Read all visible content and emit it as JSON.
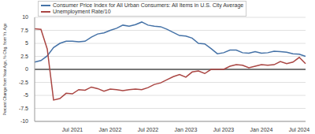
{
  "chart_data": {
    "type": "line",
    "y_label": "Percent Change from Year Ago, % Chg. from Yr. Ago",
    "categories": [
      null,
      null,
      null,
      null,
      null,
      null,
      "Jul 2021",
      null,
      null,
      null,
      null,
      null,
      "Jan 2022",
      null,
      null,
      null,
      null,
      null,
      "Jul 2022",
      null,
      null,
      null,
      null,
      null,
      "Jan 2023",
      null,
      null,
      null,
      null,
      null,
      "Jul 2023",
      null,
      null,
      null,
      null,
      null,
      "Jan 2024",
      null,
      null,
      null,
      null,
      null,
      "Jul 2024",
      null
    ],
    "series": [
      {
        "name": "Consumer Price Index for All Urban Consumers: All Items in U.S. City Average",
        "color": "#4572a7",
        "values": [
          1.4,
          1.7,
          2.6,
          4.2,
          5.0,
          5.4,
          5.4,
          5.3,
          5.4,
          6.2,
          6.8,
          7.0,
          7.5,
          7.9,
          8.5,
          8.3,
          8.6,
          9.1,
          8.5,
          8.3,
          8.2,
          7.7,
          7.1,
          6.5,
          6.4,
          6.0,
          5.0,
          4.9,
          4.0,
          3.0,
          3.2,
          3.7,
          3.7,
          3.2,
          3.1,
          3.4,
          3.1,
          3.2,
          3.5,
          3.4,
          3.3,
          3.0,
          2.9,
          2.5
        ]
      },
      {
        "name": "Unemployment Rate/10",
        "color": "#aa4643",
        "values": [
          7.8,
          7.7,
          3.9,
          -5.9,
          -5.6,
          -4.6,
          -4.7,
          -3.9,
          -4.0,
          -3.4,
          -3.7,
          -4.2,
          -3.8,
          -3.9,
          -4.1,
          -3.9,
          -3.8,
          -3.9,
          -3.5,
          -2.9,
          -2.6,
          -2.0,
          -1.4,
          -1.0,
          -1.5,
          -0.5,
          -0.3,
          -0.8,
          0,
          0,
          0,
          0.6,
          0.9,
          0.8,
          0.3,
          0.6,
          0.9,
          0.8,
          0.9,
          1.5,
          1.1,
          1.4,
          2.3,
          1.1
        ]
      }
    ],
    "hlines": [
      0
    ],
    "ylim": [
      -10,
      10
    ],
    "yticks": [
      -10,
      -7.5,
      -5,
      -2.5,
      0,
      2.5,
      5,
      7.5,
      10
    ],
    "grid": true,
    "legend": "upper left"
  }
}
